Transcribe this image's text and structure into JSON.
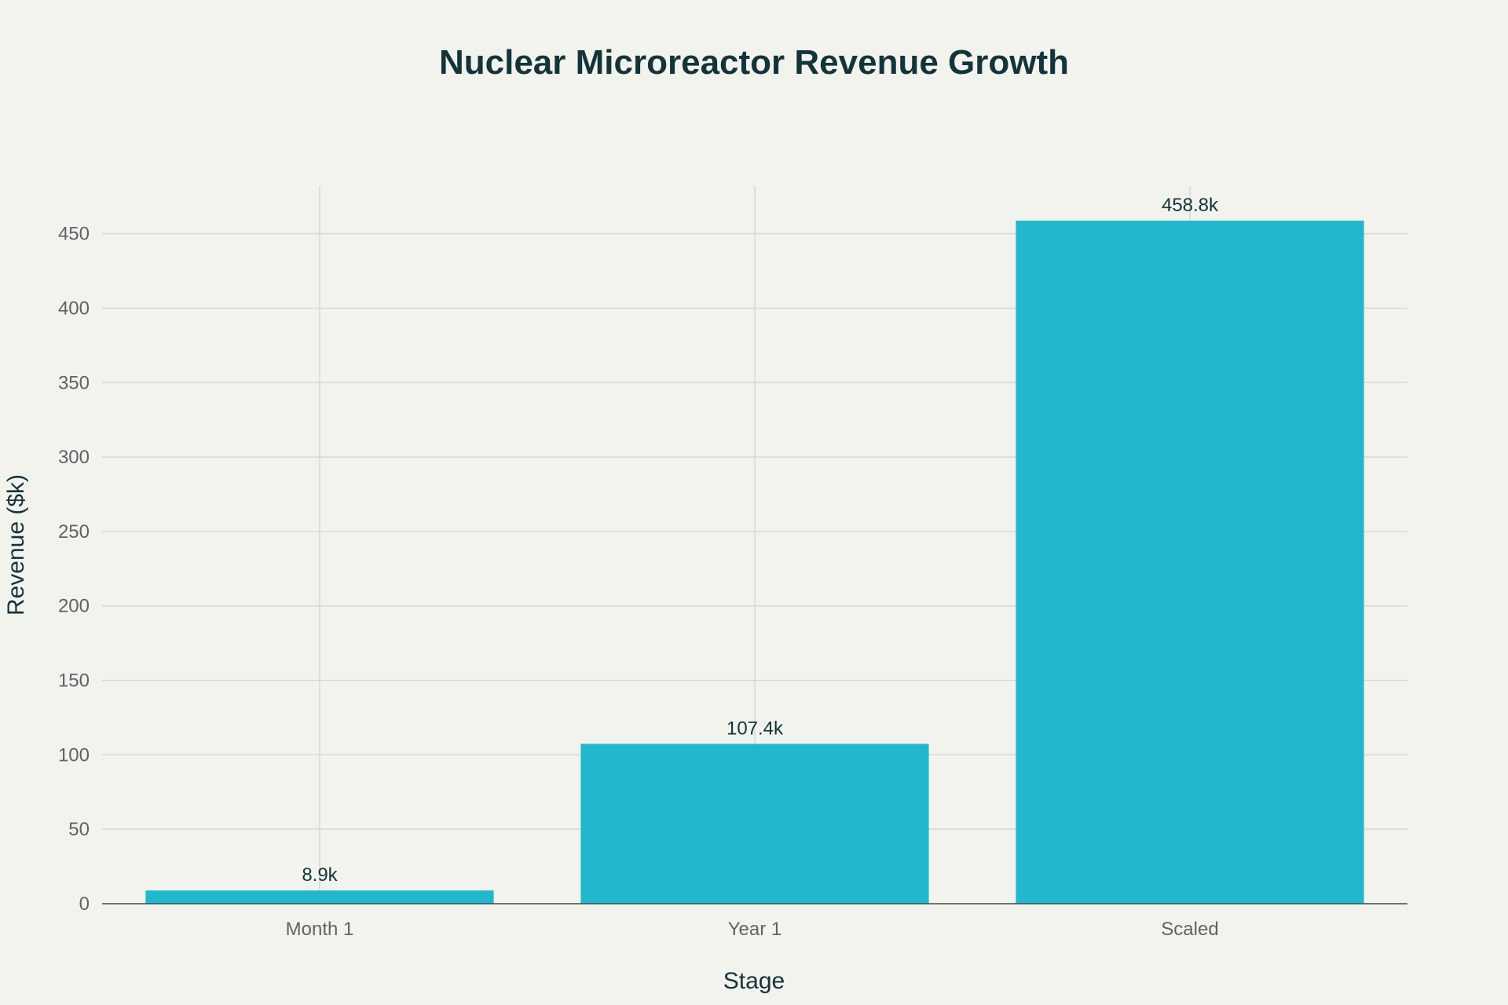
{
  "chart_data": {
    "type": "bar",
    "title": "Nuclear Microreactor Revenue Growth",
    "xlabel": "Stage",
    "ylabel": "Revenue ($k)",
    "categories": [
      "Month 1",
      "Year 1",
      "Scaled"
    ],
    "values": [
      8.9,
      107.4,
      458.8
    ],
    "data_labels": [
      "8.9k",
      "107.4k",
      "458.8k"
    ],
    "ylim": [
      0,
      482
    ],
    "yticks": [
      0,
      50,
      100,
      150,
      200,
      250,
      300,
      350,
      400,
      450
    ],
    "grid": true,
    "bar_color": "#21b8cd"
  }
}
